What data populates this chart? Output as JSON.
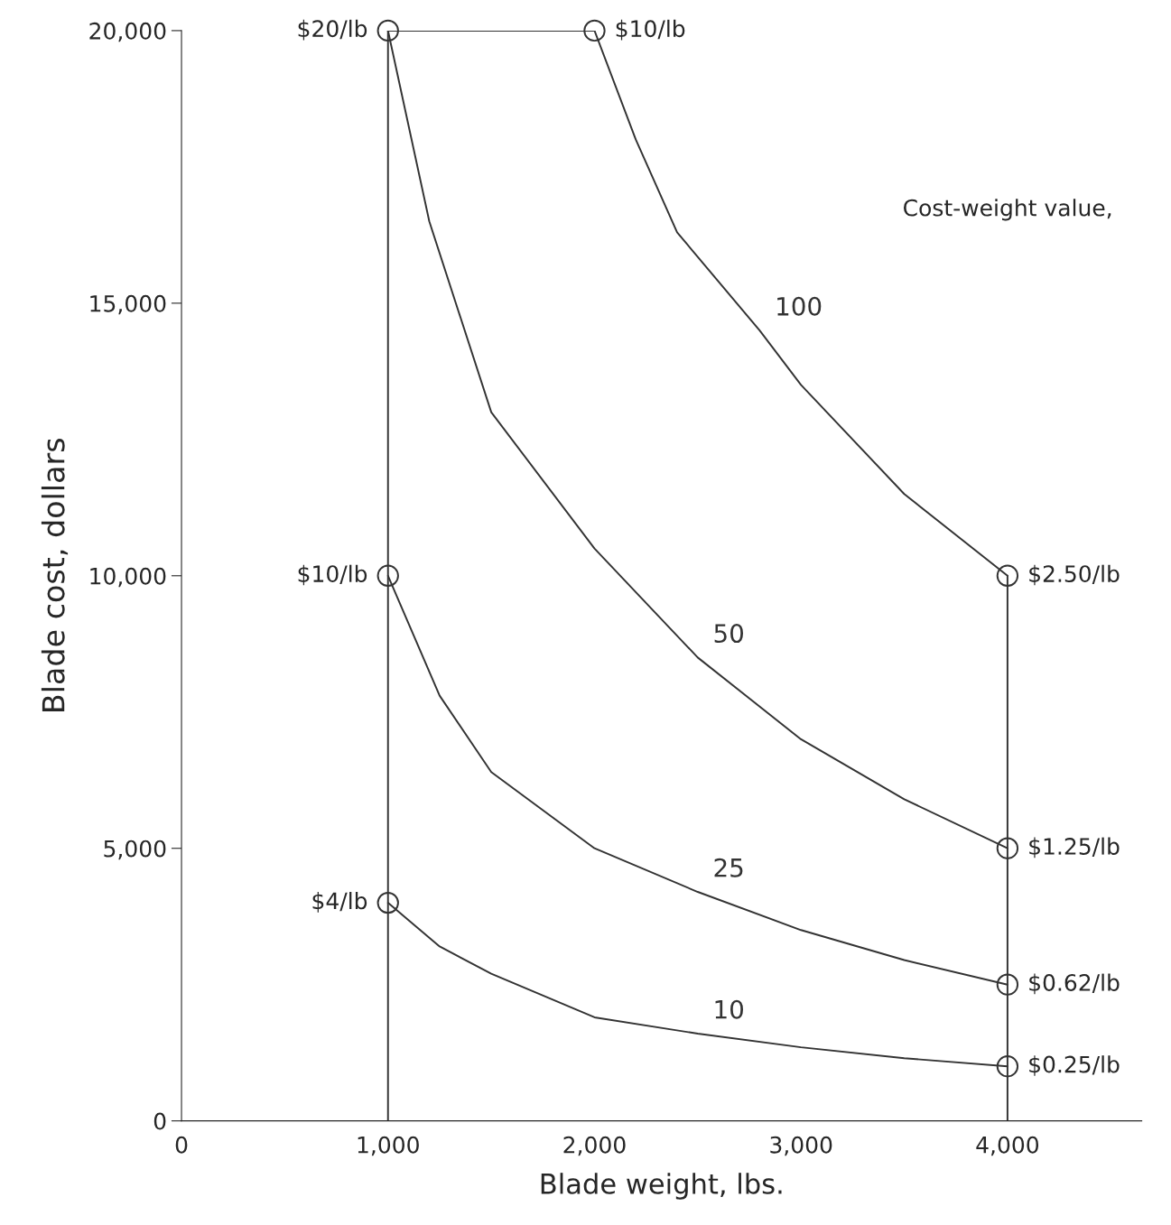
{
  "chart_data": {
    "type": "line",
    "xlabel": "Blade weight, lbs.",
    "ylabel": "Blade cost, dollars",
    "xlim": [
      0,
      4650
    ],
    "ylim": [
      0,
      20000
    ],
    "xticks": [
      0,
      {
        "value": 1000,
        "label": "1,000"
      },
      {
        "value": 2000,
        "label": "2,000"
      },
      {
        "value": 3000,
        "label": "3,000"
      },
      {
        "value": 4000,
        "label": "4,000"
      }
    ],
    "yticks": [
      0,
      {
        "value": 5000,
        "label": "5,000"
      },
      {
        "value": 10000,
        "label": "10,000"
      },
      {
        "value": 15000,
        "label": "15,000"
      },
      {
        "value": 20000,
        "label": "20,000"
      }
    ],
    "grid": false,
    "legend": false,
    "line_style": "solid",
    "marker": "none",
    "series": [
      {
        "name": "100",
        "color": "#333333",
        "x": [
          2000,
          2200,
          2400,
          2800,
          3000,
          3500,
          4000
        ],
        "values": [
          20000,
          18000,
          16300,
          14500,
          13500,
          11500,
          10000
        ]
      },
      {
        "name": "50",
        "color": "#333333",
        "x": [
          1000,
          1200,
          1500,
          2000,
          2500,
          3000,
          3500,
          4000
        ],
        "values": [
          20000,
          16500,
          13000,
          10500,
          8500,
          7000,
          5900,
          5000
        ]
      },
      {
        "name": "25",
        "color": "#333333",
        "x": [
          1000,
          1250,
          1500,
          2000,
          2500,
          3000,
          3500,
          4000
        ],
        "values": [
          10000,
          7800,
          6400,
          5000,
          4200,
          3500,
          2950,
          2500
        ]
      },
      {
        "name": "10",
        "color": "#333333",
        "x": [
          1000,
          1250,
          1500,
          2000,
          2500,
          3000,
          3500,
          4000
        ],
        "values": [
          4000,
          3200,
          2700,
          1900,
          1600,
          1350,
          1150,
          1000
        ]
      },
      {
        "color": "#333333",
        "x": [
          1000,
          1000
        ],
        "values": [
          0,
          20000
        ]
      },
      {
        "color": "#333333",
        "x": [
          1000,
          2000
        ],
        "values": [
          20000,
          20000
        ]
      },
      {
        "color": "#333333",
        "x": [
          4000,
          4000
        ],
        "values": [
          0,
          10000
        ]
      },
      {
        "type": "scatter",
        "marker": "circle",
        "color": "#333333",
        "x": [
          1000,
          2000,
          1000,
          1000,
          4000,
          4000,
          4000,
          4000
        ],
        "values": [
          20000,
          20000,
          10000,
          4000,
          10000,
          5000,
          2500,
          1000
        ]
      }
    ],
    "annotations": [
      {
        "text": "$20/lb",
        "x": 1000,
        "y": 20000
      },
      {
        "text": "$10/lb",
        "x": 2000,
        "y": 20000
      },
      {
        "text": "$10/lb",
        "x": 1000,
        "y": 10000
      },
      {
        "text": "$4/lb",
        "x": 1000,
        "y": 4000
      },
      {
        "text": "$2.50/lb",
        "x": 4000,
        "y": 10000
      },
      {
        "text": "$1.25/lb",
        "x": 4000,
        "y": 5000
      },
      {
        "text": "$0.62/lb",
        "x": 4000,
        "y": 2500
      },
      {
        "text": "$0.25/lb",
        "x": 4000,
        "y": 1000
      },
      "Cost-weight value,"
    ]
  }
}
